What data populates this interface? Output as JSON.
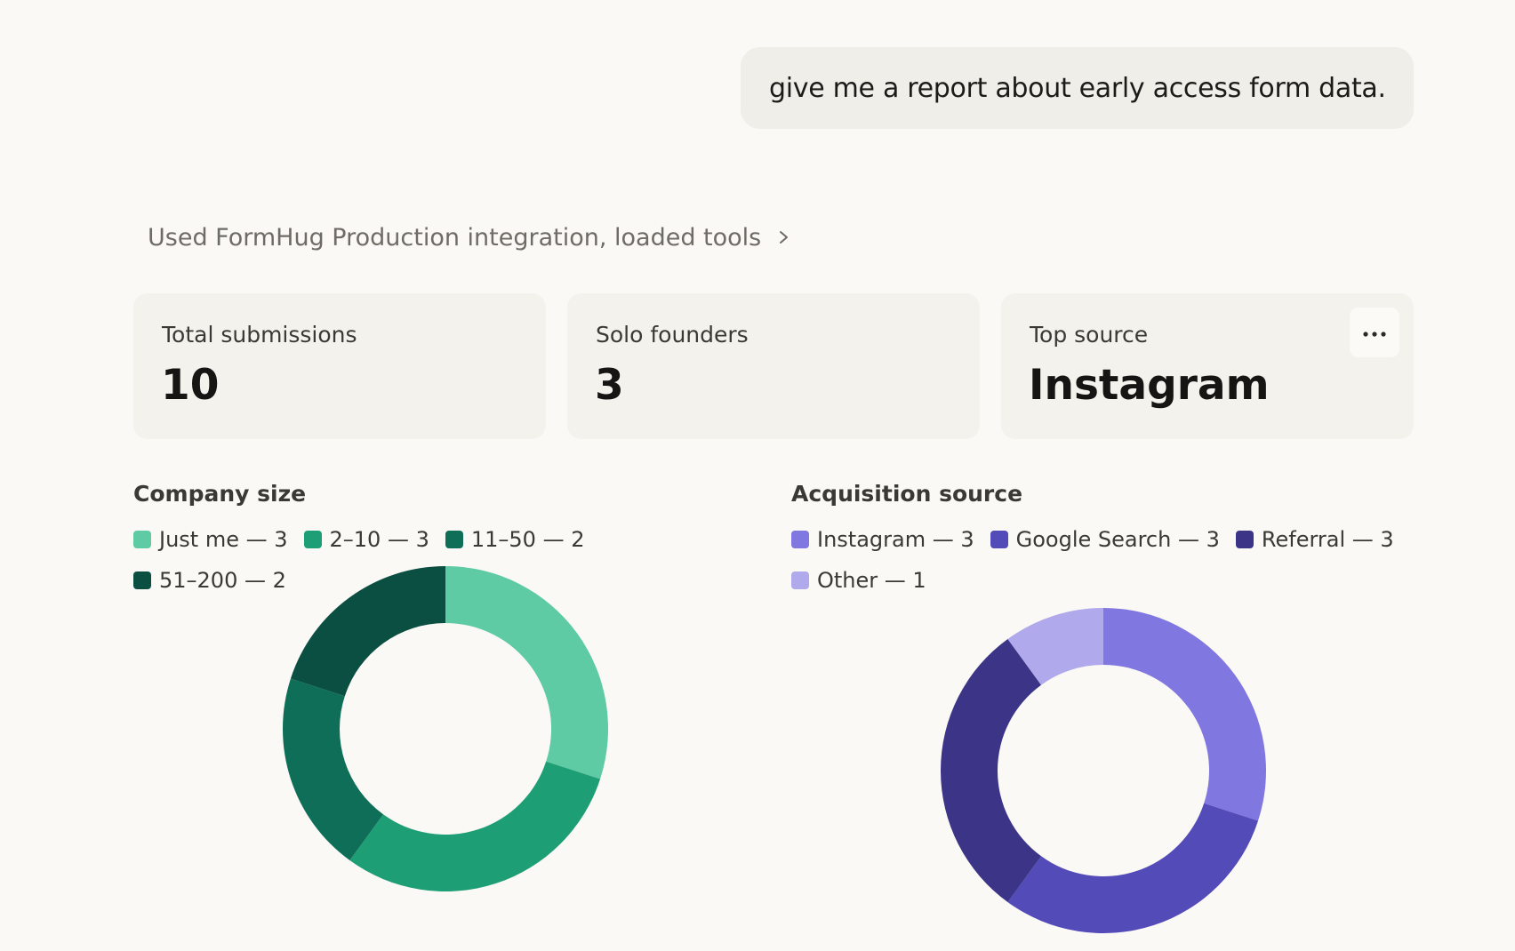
{
  "user_message": "give me a report about early access form data.",
  "tool_status": "Used FormHug Production integration, loaded tools",
  "stats": [
    {
      "label": "Total submissions",
      "value": "10"
    },
    {
      "label": "Solo founders",
      "value": "3"
    },
    {
      "label": "Top source",
      "value": "Instagram"
    }
  ],
  "chart_data": [
    {
      "type": "pie",
      "title": "Company size",
      "categories": [
        "Just me",
        "2–10",
        "11–50",
        "51–200"
      ],
      "values": [
        3,
        3,
        2,
        2
      ],
      "legend_labels": [
        "Just me — 3",
        "2–10 — 3",
        "11–50 — 2",
        "51–200 — 2"
      ],
      "colors": [
        "#5ecba5",
        "#1e9e74",
        "#0f6e58",
        "#0a4f42"
      ],
      "legend": "top-left"
    },
    {
      "type": "pie",
      "title": "Acquisition source",
      "categories": [
        "Instagram",
        "Google Search",
        "Referral",
        "Other"
      ],
      "values": [
        3,
        3,
        3,
        1
      ],
      "legend_labels": [
        "Instagram — 3",
        "Google Search — 3",
        "Referral — 3",
        "Other — 1"
      ],
      "colors": [
        "#8177e0",
        "#534bb8",
        "#3b3487",
        "#b0a9eb"
      ],
      "legend": "top-left"
    }
  ],
  "icons": {
    "tool_chevron": "chevron-right-icon",
    "card_menu": "more-horizontal-icon"
  }
}
